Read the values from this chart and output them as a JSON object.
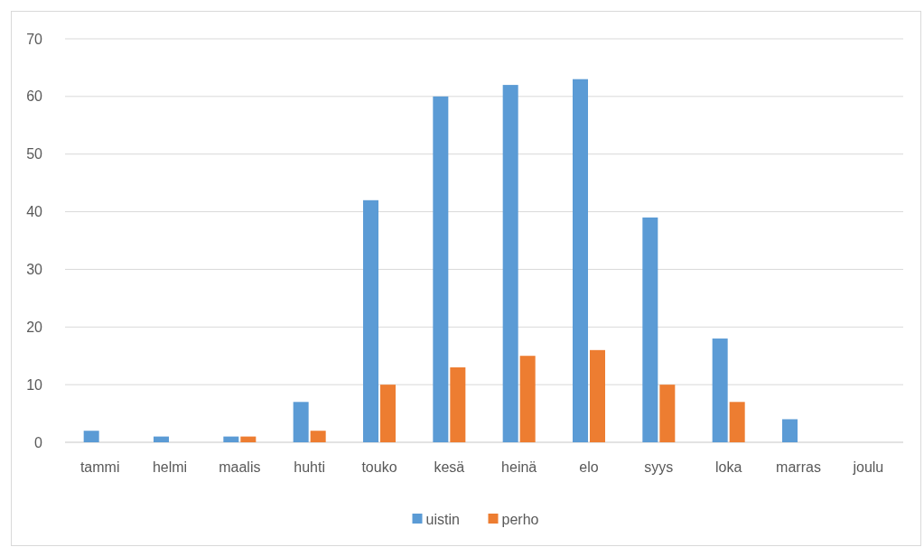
{
  "chart_data": {
    "type": "bar",
    "categories": [
      "tammi",
      "helmi",
      "maalis",
      "huhti",
      "touko",
      "kesä",
      "heinä",
      "elo",
      "syys",
      "loka",
      "marras",
      "joulu"
    ],
    "series": [
      {
        "name": "uistin",
        "color": "#5b9bd5",
        "values": [
          2,
          1,
          1,
          7,
          42,
          60,
          62,
          63,
          39,
          18,
          4,
          0
        ]
      },
      {
        "name": "perho",
        "color": "#ed7d31",
        "values": [
          0,
          0,
          1,
          2,
          10,
          13,
          15,
          16,
          10,
          7,
          0,
          0
        ]
      }
    ],
    "ylim": [
      0,
      70
    ],
    "yticks": [
      0,
      10,
      20,
      30,
      40,
      50,
      60,
      70
    ],
    "grid": "y",
    "legend": "bottom"
  }
}
